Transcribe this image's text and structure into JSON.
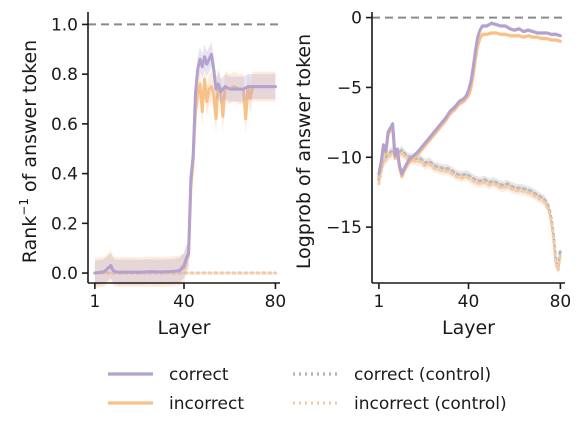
{
  "colors": {
    "correct": "#b3a2cf",
    "incorrect": "#f8c187",
    "correct_control": "#b3b0ba",
    "incorrect_control": "#f3cba6",
    "reference": "#8a8a8a",
    "axis": "#1a1a1a"
  },
  "legend": {
    "placement": "bottom",
    "entries": [
      {
        "label": "correct",
        "color": "#b3a2cf",
        "style": "solid"
      },
      {
        "label": "correct (control)",
        "color": "#b3b0ba",
        "style": "dotted"
      },
      {
        "label": "incorrect",
        "color": "#f8c187",
        "style": "solid"
      },
      {
        "label": "incorrect (control)",
        "color": "#f3cba6",
        "style": "dotted"
      }
    ]
  },
  "chart_data": [
    {
      "type": "line",
      "title": "",
      "xlabel": "Layer",
      "ylabel": "Rank⁻¹ of answer token",
      "ylabel_main": "Rank",
      "ylabel_sup": "−1",
      "ylabel_rest": " of answer token",
      "xlim": [
        -2,
        82
      ],
      "ylim": [
        -0.04,
        1.05
      ],
      "xticks": [
        1,
        40,
        80
      ],
      "yticks": [
        0.0,
        0.2,
        0.4,
        0.6,
        0.8,
        1.0
      ],
      "ytick_labels": [
        "0.0",
        "0.2",
        "0.4",
        "0.6",
        "0.8",
        "1.0"
      ],
      "reference_line": {
        "y": 1.0,
        "style": "dashed"
      },
      "series": [
        {
          "key": "correct",
          "style": "solid",
          "x": [
            1,
            5,
            8,
            9,
            10,
            12,
            15,
            20,
            25,
            30,
            35,
            38,
            40,
            41,
            42,
            43,
            44,
            45,
            46,
            47,
            48,
            49,
            50,
            51,
            52,
            53,
            54,
            55,
            56,
            58,
            60,
            62,
            64,
            66,
            68,
            70,
            72,
            74,
            76,
            78,
            80
          ],
          "y": [
            0.0,
            0.005,
            0.03,
            0.01,
            0.005,
            0.003,
            0.004,
            0.003,
            0.005,
            0.004,
            0.006,
            0.01,
            0.03,
            0.06,
            0.08,
            0.38,
            0.47,
            0.72,
            0.82,
            0.86,
            0.83,
            0.87,
            0.84,
            0.86,
            0.88,
            0.82,
            0.74,
            0.76,
            0.73,
            0.75,
            0.74,
            0.74,
            0.74,
            0.74,
            0.75,
            0.75,
            0.75,
            0.75,
            0.75,
            0.75,
            0.75
          ],
          "band": 0.05
        },
        {
          "key": "incorrect",
          "style": "solid",
          "x": [
            1,
            5,
            8,
            9,
            10,
            12,
            15,
            20,
            25,
            30,
            35,
            38,
            40,
            41,
            42,
            43,
            44,
            45,
            46,
            47,
            48,
            49,
            50,
            51,
            52,
            53,
            54,
            55,
            56,
            57,
            58,
            60,
            62,
            64,
            66,
            67,
            68,
            69,
            70,
            72,
            74,
            76,
            78,
            80
          ],
          "y": [
            0.0,
            0.005,
            0.03,
            0.01,
            0.005,
            0.003,
            0.004,
            0.003,
            0.005,
            0.004,
            0.006,
            0.01,
            0.02,
            0.05,
            0.07,
            0.34,
            0.45,
            0.65,
            0.72,
            0.76,
            0.65,
            0.78,
            0.69,
            0.74,
            0.75,
            0.72,
            0.62,
            0.76,
            0.74,
            0.63,
            0.75,
            0.74,
            0.75,
            0.74,
            0.74,
            0.62,
            0.75,
            0.7,
            0.75,
            0.75,
            0.75,
            0.75,
            0.75,
            0.75
          ],
          "band": 0.06
        },
        {
          "key": "correct_control",
          "style": "dotted",
          "x": [
            1,
            20,
            40,
            60,
            80
          ],
          "y": [
            0.0,
            0.0,
            0.0,
            0.0,
            0.0
          ],
          "band": 0
        },
        {
          "key": "incorrect_control",
          "style": "dotted",
          "x": [
            1,
            20,
            40,
            60,
            80
          ],
          "y": [
            0.0,
            0.0,
            0.0,
            0.0,
            0.0
          ],
          "band": 0
        }
      ]
    },
    {
      "type": "line",
      "title": "",
      "xlabel": "Layer",
      "ylabel": "Logprob of answer token",
      "xlim": [
        -2,
        82
      ],
      "ylim": [
        -19,
        0.4
      ],
      "xticks": [
        1,
        40,
        80
      ],
      "yticks": [
        0,
        -5,
        -10,
        -15
      ],
      "ytick_labels": [
        "0",
        "−5",
        "−10",
        "−15"
      ],
      "reference_line": {
        "y": 0,
        "style": "dashed"
      },
      "series": [
        {
          "key": "correct",
          "style": "solid",
          "x": [
            1,
            2,
            3,
            4,
            5,
            6,
            7,
            8,
            9,
            10,
            11,
            12,
            14,
            16,
            18,
            20,
            22,
            24,
            26,
            28,
            30,
            32,
            34,
            36,
            38,
            39,
            40,
            41,
            42,
            43,
            44,
            45,
            46,
            48,
            50,
            52,
            54,
            56,
            58,
            60,
            62,
            64,
            66,
            68,
            70,
            72,
            74,
            76,
            78,
            80
          ],
          "y": [
            -11.2,
            -10.3,
            -9.1,
            -9.6,
            -8.2,
            -7.9,
            -7.6,
            -9.9,
            -9.4,
            -10.6,
            -11.2,
            -10.8,
            -10.2,
            -9.9,
            -9.6,
            -9.2,
            -8.8,
            -8.4,
            -8.0,
            -7.6,
            -7.2,
            -6.7,
            -6.4,
            -6.0,
            -5.8,
            -5.6,
            -5.2,
            -4.6,
            -3.6,
            -2.4,
            -1.4,
            -0.9,
            -0.6,
            -0.6,
            -0.4,
            -0.5,
            -0.6,
            -0.6,
            -0.8,
            -0.9,
            -0.8,
            -1.0,
            -0.9,
            -1.0,
            -1.1,
            -1.1,
            -1.1,
            -1.2,
            -1.2,
            -1.3
          ],
          "band": 0.15
        },
        {
          "key": "incorrect",
          "style": "solid",
          "x": [
            1,
            2,
            3,
            4,
            5,
            6,
            7,
            8,
            9,
            10,
            11,
            12,
            14,
            16,
            18,
            20,
            22,
            24,
            26,
            28,
            30,
            32,
            34,
            36,
            38,
            39,
            40,
            41,
            42,
            43,
            44,
            45,
            46,
            48,
            50,
            52,
            54,
            56,
            58,
            60,
            62,
            64,
            66,
            68,
            70,
            72,
            74,
            76,
            78,
            80
          ],
          "y": [
            -11.4,
            -10.6,
            -9.3,
            -9.8,
            -8.4,
            -8.1,
            -7.8,
            -10.1,
            -9.6,
            -10.8,
            -11.4,
            -11.0,
            -10.4,
            -10.1,
            -9.8,
            -9.4,
            -9.0,
            -8.6,
            -8.2,
            -7.8,
            -7.4,
            -6.9,
            -6.6,
            -6.2,
            -6.0,
            -5.8,
            -5.6,
            -5.1,
            -4.2,
            -3.0,
            -2.0,
            -1.5,
            -1.2,
            -1.2,
            -1.1,
            -1.1,
            -1.2,
            -1.2,
            -1.3,
            -1.3,
            -1.3,
            -1.4,
            -1.3,
            -1.4,
            -1.4,
            -1.5,
            -1.5,
            -1.6,
            -1.6,
            -1.7
          ],
          "band": 0.15
        },
        {
          "key": "correct_control",
          "style": "dotted",
          "x": [
            1,
            2,
            3,
            5,
            7,
            9,
            11,
            13,
            15,
            17,
            19,
            21,
            23,
            25,
            27,
            29,
            31,
            33,
            35,
            37,
            39,
            41,
            43,
            45,
            47,
            49,
            51,
            53,
            55,
            57,
            59,
            61,
            63,
            65,
            67,
            69,
            71,
            73,
            75,
            76,
            77,
            78,
            79,
            80
          ],
          "y": [
            -11.6,
            -10.8,
            -10.2,
            -9.8,
            -9.5,
            -9.7,
            -9.5,
            -9.9,
            -10.0,
            -10.1,
            -10.1,
            -10.4,
            -10.3,
            -10.6,
            -10.7,
            -10.8,
            -10.8,
            -11.0,
            -11.2,
            -11.3,
            -11.2,
            -11.4,
            -11.6,
            -11.7,
            -11.6,
            -11.8,
            -11.7,
            -11.9,
            -12.0,
            -11.9,
            -12.1,
            -12.2,
            -12.2,
            -12.3,
            -12.4,
            -12.6,
            -12.8,
            -13.0,
            -13.6,
            -14.4,
            -15.6,
            -17.4,
            -17.9,
            -16.6
          ],
          "band": 0.3
        },
        {
          "key": "incorrect_control",
          "style": "dotted",
          "x": [
            1,
            2,
            3,
            5,
            7,
            9,
            11,
            13,
            15,
            17,
            19,
            21,
            23,
            25,
            27,
            29,
            31,
            33,
            35,
            37,
            39,
            41,
            43,
            45,
            47,
            49,
            51,
            53,
            55,
            57,
            59,
            61,
            63,
            65,
            67,
            69,
            71,
            73,
            75,
            76,
            77,
            78,
            79,
            80
          ],
          "y": [
            -11.9,
            -11.0,
            -10.4,
            -10.0,
            -9.7,
            -9.9,
            -9.7,
            -10.1,
            -10.2,
            -10.3,
            -10.3,
            -10.6,
            -10.5,
            -10.8,
            -10.9,
            -11.0,
            -11.0,
            -11.2,
            -11.4,
            -11.5,
            -11.4,
            -11.6,
            -11.8,
            -11.9,
            -11.8,
            -12.0,
            -11.9,
            -12.1,
            -12.2,
            -12.1,
            -12.3,
            -12.4,
            -12.4,
            -12.5,
            -12.6,
            -12.8,
            -13.0,
            -13.2,
            -13.8,
            -14.6,
            -15.8,
            -17.6,
            -18.1,
            -16.9
          ],
          "band": 0.3
        }
      ]
    }
  ]
}
